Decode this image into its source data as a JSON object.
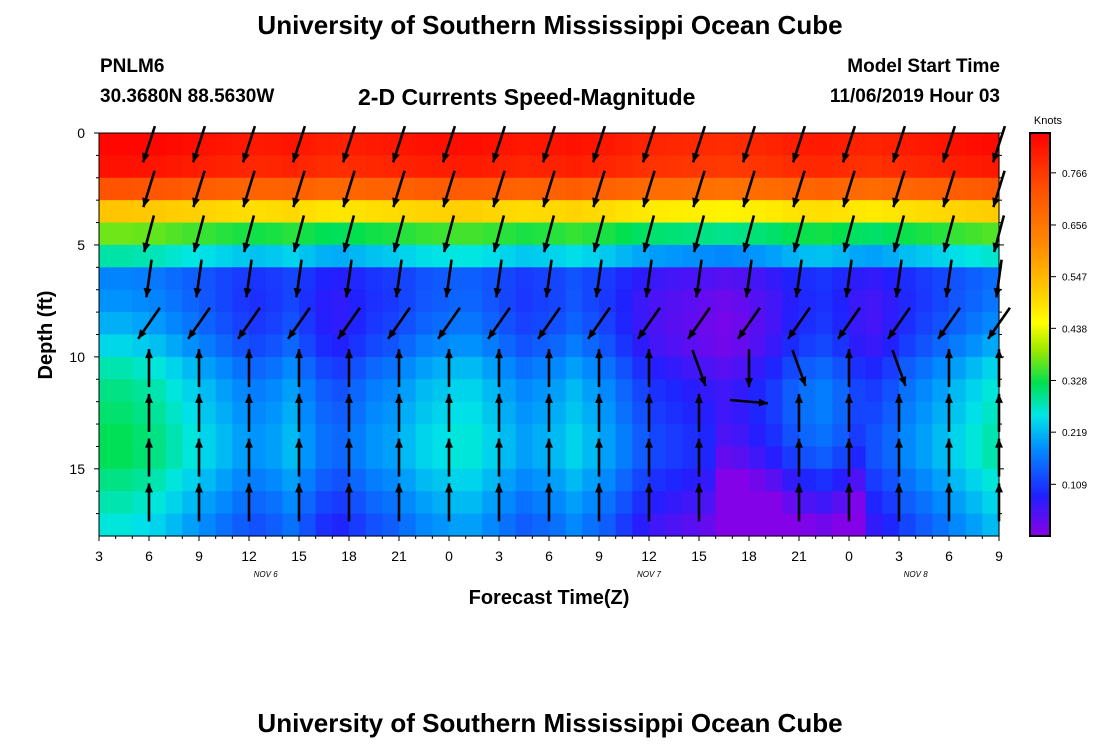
{
  "header": {
    "title": "University of Southern Mississippi Ocean Cube",
    "station": "PNLM6",
    "coords": "30.3680N 88.5630W",
    "subtitle": "2-D Currents Speed-Magnitude",
    "start_label": "Model Start Time",
    "start_time": "11/06/2019 Hour 03"
  },
  "footer": {
    "title": "University of Southern Mississippi Ocean Cube"
  },
  "chart_data": {
    "type": "heatmap",
    "title": "2-D Currents Speed-Magnitude",
    "xlabel": "Forecast Time(Z)",
    "ylabel": "Depth (ft)",
    "x_tick_labels": [
      "3",
      "6",
      "9",
      "12",
      "15",
      "18",
      "21",
      "0",
      "3",
      "6",
      "9",
      "12",
      "15",
      "18",
      "21",
      "0",
      "3",
      "6",
      "9"
    ],
    "date_labels": [
      {
        "label": "NOV  6",
        "hour_index": 10
      },
      {
        "label": "NOV  7",
        "hour_index": 33
      },
      {
        "label": "NOV  8",
        "hour_index": 49
      }
    ],
    "x_range_hours": [
      0,
      54
    ],
    "y_ticks": [
      0,
      5,
      10,
      15
    ],
    "y_range_ft": [
      0,
      18
    ],
    "colorbar": {
      "unit": "Knots",
      "range": [
        0.0,
        0.85
      ],
      "tick_values": [
        0.766,
        0.656,
        0.547,
        0.438,
        0.328,
        0.219,
        0.109
      ],
      "tick_labels": [
        "0.766",
        "0.656",
        "0.547",
        "0.438",
        "0.328",
        "0.219",
        "0.109"
      ]
    },
    "depth_levels_ft": [
      0.5,
      1.5,
      2.5,
      3.5,
      4.5,
      5.5,
      6.5,
      7.5,
      8.5,
      9.5,
      10.5,
      11.5,
      12.5,
      13.5,
      14.5,
      15.5,
      16.5,
      17.5
    ],
    "depth_profile_knots": [
      0.82,
      0.8,
      0.7,
      0.5,
      0.34,
      0.24,
      0.12,
      0.12,
      0.13,
      0.15,
      0.18,
      0.2,
      0.21,
      0.22,
      0.22,
      0.2,
      0.18,
      0.16
    ],
    "time_anomaly_knots": [
      0.1,
      0.1,
      0.09,
      0.08,
      0.06,
      0.04,
      0.02,
      0.0,
      -0.02,
      -0.03,
      -0.02,
      0.0,
      -0.03,
      -0.06,
      -0.07,
      -0.05,
      -0.03,
      -0.02,
      0.0,
      0.02,
      0.03,
      0.04,
      0.04,
      0.02,
      0.0,
      -0.02,
      -0.01,
      0.0,
      0.02,
      0.0,
      -0.02,
      -0.05,
      -0.08,
      -0.1,
      -0.11,
      -0.12,
      -0.13,
      -0.14,
      -0.13,
      -0.11,
      -0.09,
      -0.06,
      -0.04,
      -0.03,
      -0.05,
      -0.08,
      -0.09,
      -0.07,
      -0.04,
      -0.02,
      0.0,
      0.02,
      0.04,
      0.06
    ],
    "arrow_times_hours": [
      3,
      6,
      9,
      12,
      15,
      18,
      21,
      24,
      27,
      30,
      33,
      36,
      39,
      42,
      45,
      48,
      51,
      54
    ],
    "arrow_depths_ft": [
      0.5,
      2.5,
      4.5,
      6.5,
      8.5,
      10.5,
      12.5,
      14.5,
      16.5
    ],
    "arrow_direction_deg_by_depth": [
      198,
      197,
      195,
      188,
      215,
      0,
      0,
      0,
      0
    ],
    "anomalous_arrows": [
      {
        "hour": 36,
        "depth_ft": 10.5,
        "direction_deg": 160
      },
      {
        "hour": 39,
        "depth_ft": 10.5,
        "direction_deg": 180
      },
      {
        "hour": 39,
        "depth_ft": 12.0,
        "direction_deg": 95
      },
      {
        "hour": 42,
        "depth_ft": 10.5,
        "direction_deg": 160
      },
      {
        "hour": 48,
        "depth_ft": 10.5,
        "direction_deg": 160
      }
    ]
  }
}
